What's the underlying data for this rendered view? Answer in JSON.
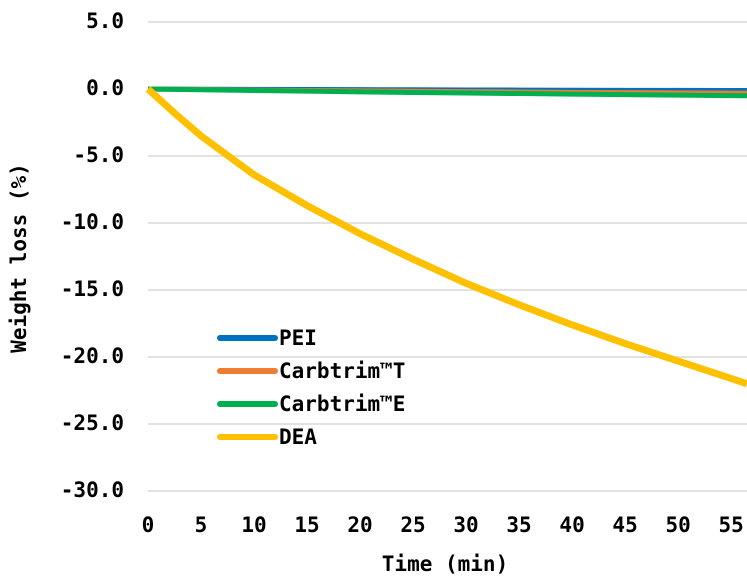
{
  "chart_data": {
    "type": "line",
    "xlabel": "Time (min)",
    "ylabel": "Weight loss (%)",
    "x": [
      0,
      2.5,
      5,
      10,
      15,
      20,
      25,
      30,
      35,
      40,
      45,
      50,
      55,
      56.5
    ],
    "series": [
      {
        "name": "PEI",
        "color": "#0070c0",
        "values": [
          0,
          -0.01,
          -0.02,
          -0.03,
          -0.04,
          -0.05,
          -0.06,
          -0.07,
          -0.08,
          -0.09,
          -0.1,
          -0.1,
          -0.11,
          -0.11
        ]
      },
      {
        "name": "Carbtrim™T",
        "color": "#ed7d31",
        "values": [
          0,
          -0.02,
          -0.04,
          -0.08,
          -0.11,
          -0.14,
          -0.17,
          -0.2,
          -0.22,
          -0.25,
          -0.27,
          -0.29,
          -0.31,
          -0.32
        ]
      },
      {
        "name": "Carbtrim™E",
        "color": "#00b050",
        "values": [
          0,
          -0.03,
          -0.06,
          -0.11,
          -0.16,
          -0.21,
          -0.26,
          -0.3,
          -0.34,
          -0.38,
          -0.42,
          -0.46,
          -0.49,
          -0.5
        ]
      },
      {
        "name": "DEA",
        "color": "#ffc000",
        "values": [
          0,
          -1.8,
          -3.5,
          -6.4,
          -8.7,
          -10.8,
          -12.7,
          -14.5,
          -16.1,
          -17.6,
          -19.0,
          -20.3,
          -21.6,
          -22.0
        ]
      }
    ],
    "xlim": [
      0,
      56.5
    ],
    "xticks": [
      0,
      5,
      10,
      15,
      20,
      25,
      30,
      35,
      40,
      45,
      50,
      55
    ],
    "ylim": [
      -30,
      5
    ],
    "yticks": [
      {
        "value": 5,
        "label": "5.0"
      },
      {
        "value": 0,
        "label": "0.0"
      },
      {
        "value": -5,
        "label": "-5.0"
      },
      {
        "value": -10,
        "label": "-10.0"
      },
      {
        "value": -15,
        "label": "-15.0"
      },
      {
        "value": -20,
        "label": "-20.0"
      },
      {
        "value": -25,
        "label": "-25.0"
      },
      {
        "value": -30,
        "label": "-30.0"
      }
    ],
    "grid": true,
    "legend": "lower left"
  }
}
